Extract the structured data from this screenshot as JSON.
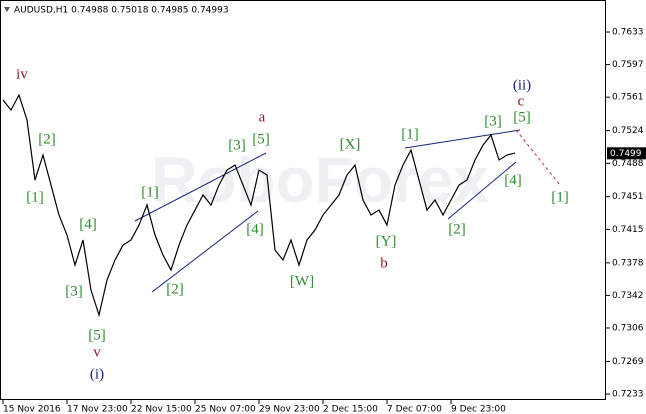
{
  "chart_data": {
    "type": "line",
    "header": "AUDUSD,H1  0.74988 0.75018 0.74985 0.74993",
    "watermark": "RoboForex",
    "color": "#000000",
    "values": [
      0.75579,
      0.75468,
      0.75634,
      0.75358,
      0.74695,
      0.74971,
      0.74639,
      0.74308,
      0.74087,
      0.73755,
      0.74032,
      0.73479,
      0.73203,
      0.7359,
      0.73811,
      0.73976,
      0.74032,
      0.74197,
      0.74418,
      0.74087,
      0.73866,
      0.737,
      0.73976,
      0.74197,
      0.74363,
      0.74529,
      0.74418,
      0.74639,
      0.74805,
      0.7486,
      0.74639,
      0.74418,
      0.74805,
      0.7475,
      0.73921,
      0.73811,
      0.74032,
      0.73755,
      0.74032,
      0.74142,
      0.74308,
      0.74418,
      0.74529,
      0.7475,
      0.7486,
      0.74474,
      0.74308,
      0.74363,
      0.74197,
      0.74639,
      0.7486,
      0.75026,
      0.74695,
      0.74363,
      0.74474,
      0.74308,
      0.74474,
      0.74639,
      0.74695,
      0.74916,
      0.75081,
      0.75192,
      0.74916,
      0.74971,
      0.74993
    ],
    "current_price": 0.7499,
    "ylim": [
      0.72264,
      0.76684
    ],
    "yticks": [
      0.7633,
      0.7597,
      0.7561,
      0.7524,
      0.7488,
      0.7451,
      0.7415,
      0.7378,
      0.7342,
      0.7306,
      0.7269,
      0.7233
    ],
    "xticks": [
      {
        "value": 0,
        "label": "15 Nov 2016"
      },
      {
        "value": 8,
        "label": "17 Nov 23:00"
      },
      {
        "value": 16,
        "label": "22 Nov 15:00"
      },
      {
        "value": 24,
        "label": "25 Nov 07:00"
      },
      {
        "value": 32,
        "label": "29 Nov 23:00"
      },
      {
        "value": 40,
        "label": "2 Dec 15:00"
      },
      {
        "value": 48,
        "label": "7 Dec 07:00"
      },
      {
        "value": 56,
        "label": "9 Dec 23:00"
      }
    ],
    "annotations": [
      {
        "text": "iv",
        "color": "#8b1a1a"
      },
      {
        "text": "[2]",
        "color": "#2e8b2e"
      },
      {
        "text": "[1]",
        "color": "#2e8b2e"
      },
      {
        "text": "[4]",
        "color": "#2e8b2e"
      },
      {
        "text": "[3]",
        "color": "#2e8b2e"
      },
      {
        "text": "[5]",
        "color": "#2e8b2e"
      },
      {
        "text": "v",
        "color": "#8b1a1a"
      },
      {
        "text": "(i)",
        "color": "#1a237e"
      },
      {
        "text": "[1]",
        "color": "#2e8b2e"
      },
      {
        "text": "[2]",
        "color": "#2e8b2e"
      },
      {
        "text": "[3]",
        "color": "#2e8b2e"
      },
      {
        "text": "[5]",
        "color": "#2e8b2e"
      },
      {
        "text": "a",
        "color": "#8b1a1a"
      },
      {
        "text": "[4]",
        "color": "#2e8b2e"
      },
      {
        "text": "[W]",
        "color": "#2e8b2e"
      },
      {
        "text": "[X]",
        "color": "#2e8b2e"
      },
      {
        "text": "[Y]",
        "color": "#2e8b2e"
      },
      {
        "text": "b",
        "color": "#8b1a1a"
      },
      {
        "text": "[1]",
        "color": "#2e8b2e"
      },
      {
        "text": "[2]",
        "color": "#2e8b2e"
      },
      {
        "text": "[3]",
        "color": "#2e8b2e"
      },
      {
        "text": "[5]",
        "color": "#2e8b2e"
      },
      {
        "text": "c",
        "color": "#8b1a1a"
      },
      {
        "text": "(ii)",
        "color": "#1a237e"
      },
      {
        "text": "[4]",
        "color": "#2e8b2e"
      },
      {
        "text": "[1]",
        "color": "#2e8b2e"
      }
    ]
  }
}
